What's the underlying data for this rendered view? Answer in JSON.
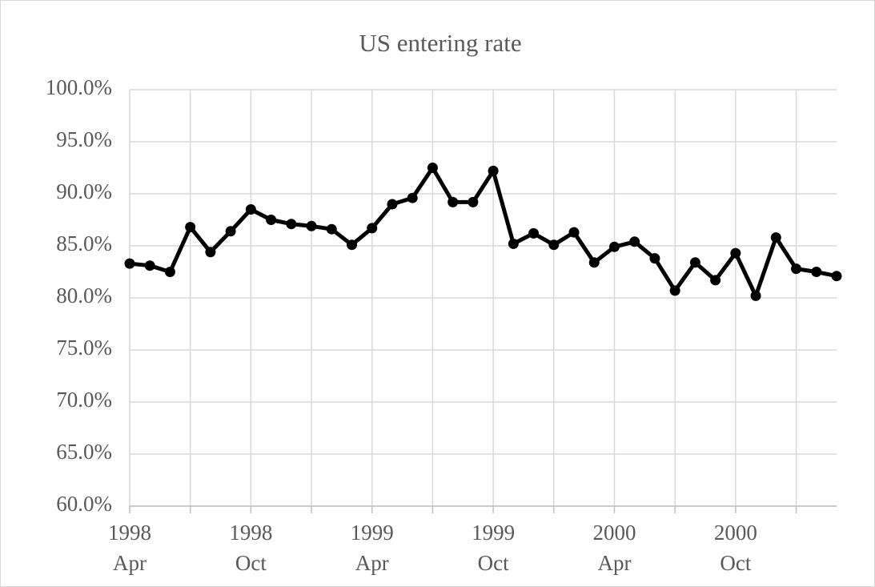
{
  "chart_data": {
    "type": "line",
    "title": "US entering rate",
    "categories": [
      {
        "year": "1998",
        "month": "Apr"
      },
      null,
      null,
      null,
      null,
      null,
      {
        "year": "1998",
        "month": "Oct"
      },
      null,
      null,
      null,
      null,
      null,
      {
        "year": "1999",
        "month": "Apr"
      },
      null,
      null,
      null,
      null,
      null,
      {
        "year": "1999",
        "month": "Oct"
      },
      null,
      null,
      null,
      null,
      null,
      {
        "year": "2000",
        "month": "Apr"
      },
      null,
      null,
      null,
      null,
      null,
      {
        "year": "2000",
        "month": "Oct"
      },
      null,
      null,
      null,
      null,
      null
    ],
    "series": [
      {
        "color": "#000000",
        "values": [
          83.3,
          83.1,
          82.5,
          86.8,
          84.4,
          86.4,
          88.5,
          87.5,
          87.1,
          86.9,
          86.6,
          85.1,
          86.7,
          89.0,
          89.6,
          92.5,
          89.2,
          89.2,
          92.2,
          85.2,
          86.2,
          85.1,
          86.3,
          83.4,
          84.9,
          85.4,
          83.8,
          80.7,
          83.4,
          81.7,
          84.3,
          80.2,
          85.8,
          82.8,
          82.5,
          82.1
        ]
      }
    ],
    "ylim": [
      60,
      100
    ],
    "yticks": [
      {
        "value": 60,
        "label": "60.0%"
      },
      {
        "value": 65,
        "label": "65.0%"
      },
      {
        "value": 70,
        "label": "70.0%"
      },
      {
        "value": 75,
        "label": "75.0%"
      },
      {
        "value": 80,
        "label": "80.0%"
      },
      {
        "value": 85,
        "label": "85.0%"
      },
      {
        "value": 90,
        "label": "90.0%"
      },
      {
        "value": 95,
        "label": "95.0%"
      },
      {
        "value": 100,
        "label": "100.0%"
      }
    ],
    "grid": true
  }
}
